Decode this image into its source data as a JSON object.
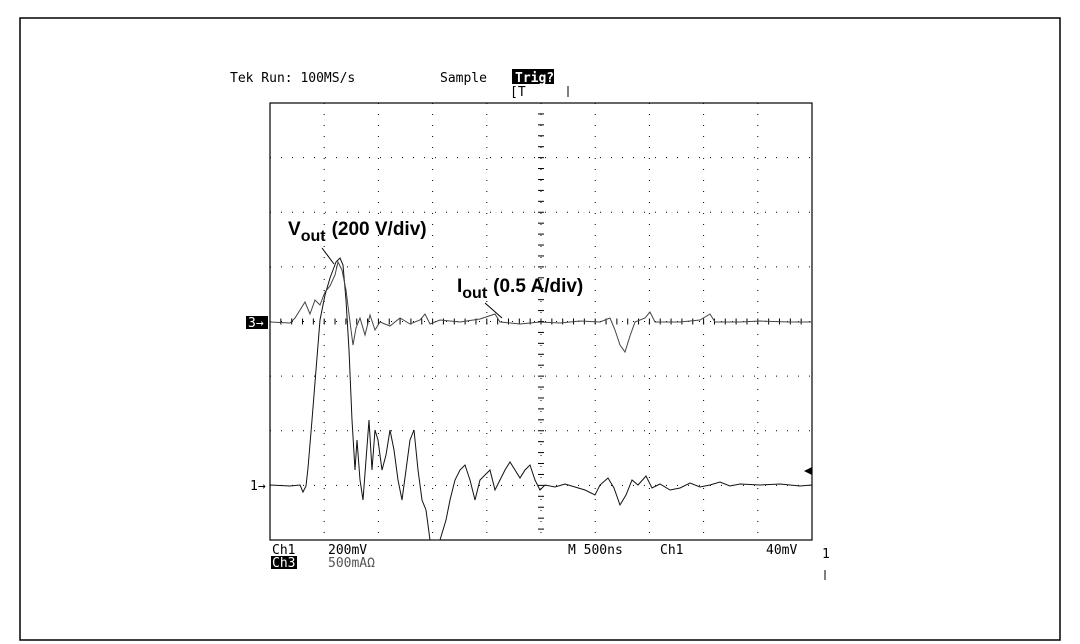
{
  "scope": {
    "header": {
      "status": "Tek Run: 100MS/s",
      "mode": "Sample",
      "trigger": "Trig?",
      "trigger_bracket": "[T"
    },
    "annotations": {
      "vout": {
        "symbol": "V",
        "subscript": "out",
        "scale": "(200 V/div)"
      },
      "iout": {
        "symbol": "I",
        "subscript": "out",
        "scale": "(0.5 A/div)"
      }
    },
    "markers": {
      "ch3": "3→",
      "ch1": "1→"
    },
    "footer": {
      "ch1_label": "Ch1",
      "ch1_scale": "200mV",
      "ch3_label": "Ch3",
      "ch3_scale": "500mAΩ",
      "timebase": "M 500ns",
      "trig_source": "Ch1",
      "trig_level": "40mV",
      "side_mark": "1"
    }
  }
}
